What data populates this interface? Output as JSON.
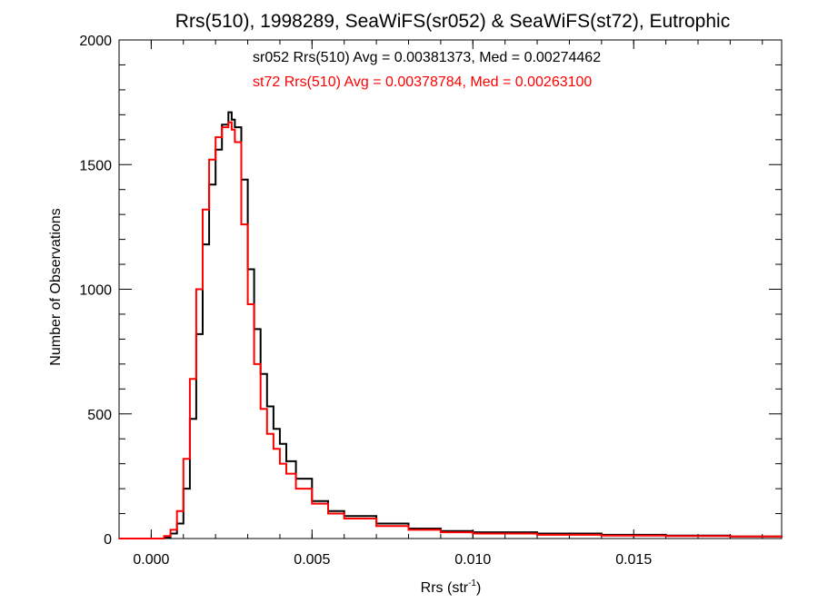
{
  "chart_data": {
    "type": "line",
    "title": "Rrs(510), 1998289, SeaWiFS(sr052) & SeaWiFS(st72), Eutrophic",
    "xlabel_main": "Rrs (str",
    "xlabel_sup": "-1",
    "xlabel_close": ")",
    "ylabel": "Number of Observations",
    "xlim": [
      -0.001,
      0.0196
    ],
    "ylim": [
      0,
      2000
    ],
    "x_ticks": [
      0.0,
      0.005,
      0.01,
      0.015
    ],
    "x_tick_labels": [
      "0.000",
      "0.005",
      "0.010",
      "0.015"
    ],
    "y_ticks": [
      0,
      500,
      1000,
      1500,
      2000
    ],
    "y_tick_labels": [
      "0",
      "500",
      "1000",
      "1500",
      "2000"
    ],
    "grid": false,
    "legend_position": "top-center",
    "series": [
      {
        "name": "sr052 Rrs(510) Avg = 0.00381373, Med = 0.00274462",
        "color": "#000000",
        "x": [
          -0.001,
          0.0002,
          0.0004,
          0.0006,
          0.0008,
          0.001,
          0.0012,
          0.0014,
          0.0016,
          0.0018,
          0.002,
          0.0022,
          0.0024,
          0.0025,
          0.0026,
          0.0028,
          0.003,
          0.0032,
          0.0034,
          0.0036,
          0.0038,
          0.004,
          0.0042,
          0.0045,
          0.005,
          0.0055,
          0.006,
          0.007,
          0.008,
          0.009,
          0.01,
          0.012,
          0.014,
          0.016,
          0.018,
          0.0196
        ],
        "y": [
          0,
          0,
          5,
          20,
          60,
          200,
          480,
          820,
          1180,
          1420,
          1560,
          1660,
          1710,
          1680,
          1650,
          1440,
          1080,
          840,
          660,
          530,
          440,
          380,
          310,
          240,
          150,
          110,
          90,
          60,
          40,
          30,
          25,
          20,
          15,
          12,
          8,
          5
        ]
      },
      {
        "name": "st72 Rrs(510) Avg = 0.00378784, Med = 0.00263100",
        "color": "#ff0000",
        "x": [
          -0.001,
          0.0002,
          0.0004,
          0.0006,
          0.0008,
          0.001,
          0.0012,
          0.0014,
          0.0016,
          0.0018,
          0.002,
          0.0022,
          0.0024,
          0.0025,
          0.0026,
          0.0028,
          0.003,
          0.0032,
          0.0034,
          0.0036,
          0.0038,
          0.004,
          0.0042,
          0.0045,
          0.005,
          0.0055,
          0.006,
          0.007,
          0.008,
          0.009,
          0.01,
          0.012,
          0.014,
          0.016,
          0.018,
          0.0196
        ],
        "y": [
          0,
          0,
          10,
          35,
          110,
          320,
          640,
          1000,
          1320,
          1520,
          1610,
          1650,
          1670,
          1640,
          1590,
          1260,
          940,
          700,
          520,
          420,
          360,
          300,
          260,
          200,
          140,
          100,
          80,
          50,
          35,
          25,
          20,
          15,
          12,
          10,
          8,
          5
        ]
      }
    ]
  }
}
